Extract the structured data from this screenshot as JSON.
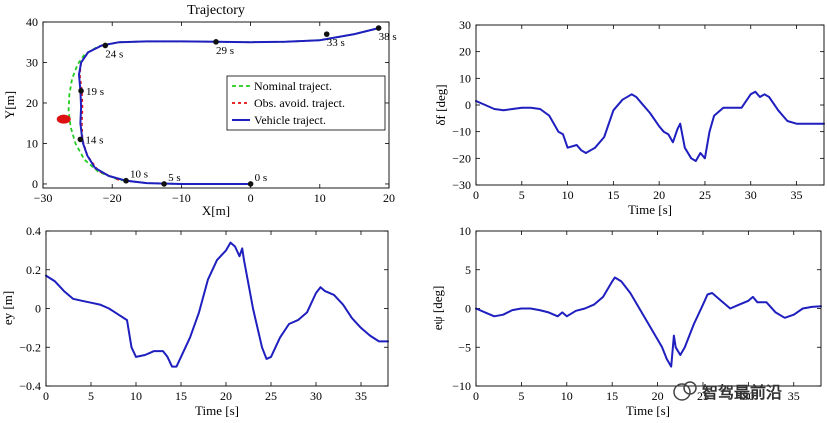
{
  "chart_data": [
    {
      "id": "trajectory",
      "type": "line",
      "title": "Trajectory",
      "xlabel": "X[m]",
      "ylabel": "Y[m]",
      "xlim": [
        -30,
        20
      ],
      "ylim": [
        -1,
        40
      ],
      "xticks": [
        -30,
        -20,
        -10,
        0,
        10,
        20
      ],
      "yticks": [
        0,
        10,
        20,
        30,
        40
      ],
      "legend": {
        "placement": "right",
        "entries": [
          "Nominal traject.",
          "Obs. avoid. traject.",
          "Vehicle traject."
        ]
      },
      "obstacle": {
        "x": -27,
        "y": 16,
        "color": "#dd1111"
      },
      "series": [
        {
          "name": "Nominal traject.",
          "color": "#22cc22",
          "style": "dashed",
          "points": [
            [
              0,
              0
            ],
            [
              -5,
              0
            ],
            [
              -10,
              0
            ],
            [
              -15,
              0.2
            ],
            [
              -19,
              1
            ],
            [
              -22,
              3
            ],
            [
              -24,
              6
            ],
            [
              -25.3,
              10
            ],
            [
              -26,
              14
            ],
            [
              -26.3,
              18
            ],
            [
              -26.2,
              22
            ],
            [
              -25.8,
              26
            ],
            [
              -25,
              29.5
            ],
            [
              -24,
              32
            ],
            [
              -22,
              34
            ],
            [
              -19,
              35
            ],
            [
              -15,
              35.2
            ],
            [
              -10,
              35.2
            ],
            [
              -5,
              35.1
            ],
            [
              0,
              35
            ],
            [
              5,
              35.1
            ],
            [
              10,
              35.5
            ],
            [
              15,
              37
            ],
            [
              18.5,
              38.5
            ]
          ]
        },
        {
          "name": "Obs. avoid. traject.",
          "color": "#e01010",
          "style": "dashdot",
          "points": [
            [
              -19,
              1
            ],
            [
              -22,
              3.2
            ],
            [
              -23.6,
              7
            ],
            [
              -24.3,
              11
            ],
            [
              -24.4,
              15
            ],
            [
              -24.3,
              19
            ],
            [
              -24.4,
              23
            ],
            [
              -24.7,
              27
            ],
            [
              -24.5,
              30
            ],
            [
              -23.5,
              32.5
            ],
            [
              -21.5,
              34.2
            ],
            [
              -19,
              35
            ]
          ]
        },
        {
          "name": "Vehicle traject.",
          "color": "#1f1fbf",
          "style": "solid",
          "points": [
            [
              0,
              0
            ],
            [
              -5,
              0
            ],
            [
              -10,
              0
            ],
            [
              -15,
              0.2
            ],
            [
              -18,
              0.8
            ],
            [
              -20.5,
              2
            ],
            [
              -22.5,
              4
            ],
            [
              -23.6,
              7
            ],
            [
              -24.2,
              10
            ],
            [
              -24.4,
              12
            ],
            [
              -24.6,
              15
            ],
            [
              -24.5,
              19
            ],
            [
              -24.6,
              23
            ],
            [
              -24.8,
              27
            ],
            [
              -24.5,
              30
            ],
            [
              -23.5,
              32.5
            ],
            [
              -21.5,
              34.2
            ],
            [
              -19,
              35
            ],
            [
              -15,
              35.2
            ],
            [
              -10,
              35.2
            ],
            [
              -5,
              35.1
            ],
            [
              0,
              35
            ],
            [
              5,
              35.1
            ],
            [
              10,
              35.5
            ],
            [
              15,
              37
            ],
            [
              18.5,
              38.5
            ]
          ]
        }
      ],
      "time_marks": [
        {
          "label": "0 s",
          "x": 0,
          "y": 0
        },
        {
          "label": "5 s",
          "x": -12.5,
          "y": 0
        },
        {
          "label": "10 s",
          "x": -18,
          "y": 0.8
        },
        {
          "label": "14 s",
          "x": -24.6,
          "y": 11
        },
        {
          "label": "19 s",
          "x": -24.5,
          "y": 23
        },
        {
          "label": "24 s",
          "x": -21,
          "y": 34.2
        },
        {
          "label": "29 s",
          "x": -5,
          "y": 35.1
        },
        {
          "label": "33 s",
          "x": 11,
          "y": 37
        },
        {
          "label": "38 s",
          "x": 18.5,
          "y": 38.5
        }
      ]
    },
    {
      "id": "steering",
      "type": "line",
      "title": "",
      "xlabel": "Time [s]",
      "ylabel": "δf [deg]",
      "xlim": [
        0,
        38
      ],
      "ylim": [
        -30,
        30
      ],
      "xticks": [
        0,
        5,
        10,
        15,
        20,
        25,
        30,
        35
      ],
      "yticks": [
        -30,
        -20,
        -10,
        0,
        10,
        20,
        30
      ],
      "series": [
        {
          "name": "delta_f",
          "color": "#1f1fbf",
          "points": [
            [
              0,
              1.5
            ],
            [
              1,
              0
            ],
            [
              2,
              -1.5
            ],
            [
              3,
              -2
            ],
            [
              4,
              -1.5
            ],
            [
              5,
              -1
            ],
            [
              6,
              -1
            ],
            [
              7,
              -1.5
            ],
            [
              8,
              -4
            ],
            [
              9,
              -10
            ],
            [
              9.5,
              -11
            ],
            [
              10,
              -16
            ],
            [
              11,
              -15
            ],
            [
              11.5,
              -17
            ],
            [
              12,
              -18
            ],
            [
              12.5,
              -17
            ],
            [
              13,
              -16
            ],
            [
              14,
              -12
            ],
            [
              15,
              -2
            ],
            [
              16,
              2
            ],
            [
              17,
              4
            ],
            [
              17.5,
              3
            ],
            [
              18,
              1
            ],
            [
              19,
              -3
            ],
            [
              20,
              -8
            ],
            [
              20.5,
              -10
            ],
            [
              21,
              -11
            ],
            [
              21.5,
              -14
            ],
            [
              22,
              -9
            ],
            [
              22.3,
              -7
            ],
            [
              22.8,
              -16
            ],
            [
              23.5,
              -20
            ],
            [
              24,
              -21
            ],
            [
              24.5,
              -18
            ],
            [
              25,
              -20
            ],
            [
              25.5,
              -10
            ],
            [
              26,
              -4
            ],
            [
              27,
              -1
            ],
            [
              28,
              -1
            ],
            [
              29,
              -1
            ],
            [
              30,
              4
            ],
            [
              30.5,
              5
            ],
            [
              31,
              3
            ],
            [
              31.5,
              4
            ],
            [
              32,
              3
            ],
            [
              33,
              -2
            ],
            [
              34,
              -6
            ],
            [
              35,
              -7
            ],
            [
              36,
              -7
            ],
            [
              37,
              -7
            ],
            [
              38,
              -7
            ]
          ]
        }
      ]
    },
    {
      "id": "lateral_error",
      "type": "line",
      "title": "",
      "xlabel": "Time [s]",
      "ylabel": "ey [m]",
      "xlim": [
        0,
        38
      ],
      "ylim": [
        -0.4,
        0.4
      ],
      "xticks": [
        0,
        5,
        10,
        15,
        20,
        25,
        30,
        35
      ],
      "yticks": [
        -0.4,
        -0.2,
        0,
        0.2,
        0.4
      ],
      "series": [
        {
          "name": "e_y",
          "color": "#1f1fbf",
          "points": [
            [
              0,
              0.17
            ],
            [
              1,
              0.14
            ],
            [
              2,
              0.09
            ],
            [
              3,
              0.05
            ],
            [
              4,
              0.04
            ],
            [
              5,
              0.03
            ],
            [
              6,
              0.02
            ],
            [
              7,
              0.0
            ],
            [
              8,
              -0.03
            ],
            [
              9,
              -0.06
            ],
            [
              9.5,
              -0.2
            ],
            [
              10,
              -0.25
            ],
            [
              11,
              -0.24
            ],
            [
              11.5,
              -0.23
            ],
            [
              12,
              -0.22
            ],
            [
              13,
              -0.22
            ],
            [
              13.5,
              -0.25
            ],
            [
              14,
              -0.3
            ],
            [
              14.5,
              -0.3
            ],
            [
              15,
              -0.25
            ],
            [
              16,
              -0.15
            ],
            [
              17,
              -0.02
            ],
            [
              18,
              0.15
            ],
            [
              19,
              0.25
            ],
            [
              20,
              0.3
            ],
            [
              20.5,
              0.34
            ],
            [
              21,
              0.32
            ],
            [
              21.5,
              0.27
            ],
            [
              21.8,
              0.31
            ],
            [
              22,
              0.25
            ],
            [
              23,
              0.0
            ],
            [
              24,
              -0.2
            ],
            [
              24.5,
              -0.26
            ],
            [
              25,
              -0.25
            ],
            [
              26,
              -0.15
            ],
            [
              27,
              -0.08
            ],
            [
              28,
              -0.06
            ],
            [
              29,
              -0.02
            ],
            [
              30,
              0.08
            ],
            [
              30.5,
              0.11
            ],
            [
              31,
              0.09
            ],
            [
              32,
              0.07
            ],
            [
              33,
              0.02
            ],
            [
              34,
              -0.05
            ],
            [
              35,
              -0.1
            ],
            [
              36,
              -0.14
            ],
            [
              37,
              -0.17
            ],
            [
              38,
              -0.17
            ]
          ]
        }
      ]
    },
    {
      "id": "heading_error",
      "type": "line",
      "title": "",
      "xlabel": "Time [s]",
      "ylabel": "eψ [deg]",
      "xlim": [
        0,
        38
      ],
      "ylim": [
        -10,
        10
      ],
      "xticks": [
        0,
        5,
        10,
        15,
        20,
        25,
        30,
        35
      ],
      "yticks": [
        -10,
        -5,
        0,
        5,
        10
      ],
      "series": [
        {
          "name": "e_psi",
          "color": "#1f1fbf",
          "points": [
            [
              0,
              0
            ],
            [
              1,
              -0.5
            ],
            [
              2,
              -1
            ],
            [
              3,
              -0.8
            ],
            [
              4,
              -0.2
            ],
            [
              5,
              0
            ],
            [
              6,
              0
            ],
            [
              7,
              -0.2
            ],
            [
              8,
              -0.5
            ],
            [
              9,
              -1
            ],
            [
              9.5,
              -0.5
            ],
            [
              10,
              -1
            ],
            [
              11,
              -0.3
            ],
            [
              12,
              0
            ],
            [
              13,
              0.5
            ],
            [
              14,
              1.5
            ],
            [
              15,
              3.5
            ],
            [
              15.3,
              4
            ],
            [
              16,
              3.5
            ],
            [
              17,
              2
            ],
            [
              18,
              0
            ],
            [
              19,
              -2
            ],
            [
              20,
              -4
            ],
            [
              20.5,
              -5
            ],
            [
              21,
              -6.5
            ],
            [
              21.5,
              -7.5
            ],
            [
              21.8,
              -3.5
            ],
            [
              22,
              -5
            ],
            [
              22.5,
              -6
            ],
            [
              23,
              -5
            ],
            [
              24,
              -2
            ],
            [
              25,
              0.5
            ],
            [
              25.5,
              1.8
            ],
            [
              26,
              2
            ],
            [
              27,
              1
            ],
            [
              28,
              0
            ],
            [
              29,
              0.5
            ],
            [
              30,
              1
            ],
            [
              30.5,
              1.5
            ],
            [
              31,
              0.8
            ],
            [
              32,
              0.8
            ],
            [
              33,
              -0.5
            ],
            [
              34,
              -1.2
            ],
            [
              35,
              -0.8
            ],
            [
              36,
              0
            ],
            [
              37,
              0.2
            ],
            [
              38,
              0.3
            ]
          ]
        }
      ]
    }
  ],
  "watermark": {
    "text": "智驾最前沿"
  }
}
